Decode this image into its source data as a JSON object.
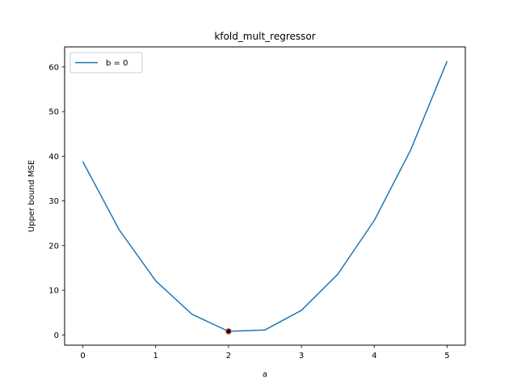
{
  "chart_data": {
    "type": "line",
    "title": "kfold_mult_regressor",
    "xlabel": "a",
    "ylabel": "Upper bound MSE",
    "xlim": [
      -0.25,
      5.25
    ],
    "ylim": [
      -2.3,
      64.5
    ],
    "xticks": [
      0,
      1,
      2,
      3,
      4,
      5
    ],
    "yticks": [
      0,
      10,
      20,
      30,
      40,
      50,
      60
    ],
    "grid": false,
    "legend_position": "upper-left",
    "series": [
      {
        "name": "b = 0",
        "color": "#1f77b4",
        "x": [
          0,
          0.5,
          1,
          1.5,
          2,
          2.5,
          3,
          3.5,
          4,
          4.5,
          5
        ],
        "y": [
          38.8,
          23.5,
          12.1,
          4.6,
          0.8,
          1.1,
          5.5,
          13.6,
          25.6,
          41.4,
          61.3
        ]
      }
    ],
    "highlight_point": {
      "x": 2,
      "y": 0.8,
      "fill": "#000080",
      "edge": "#ff8c00"
    }
  }
}
